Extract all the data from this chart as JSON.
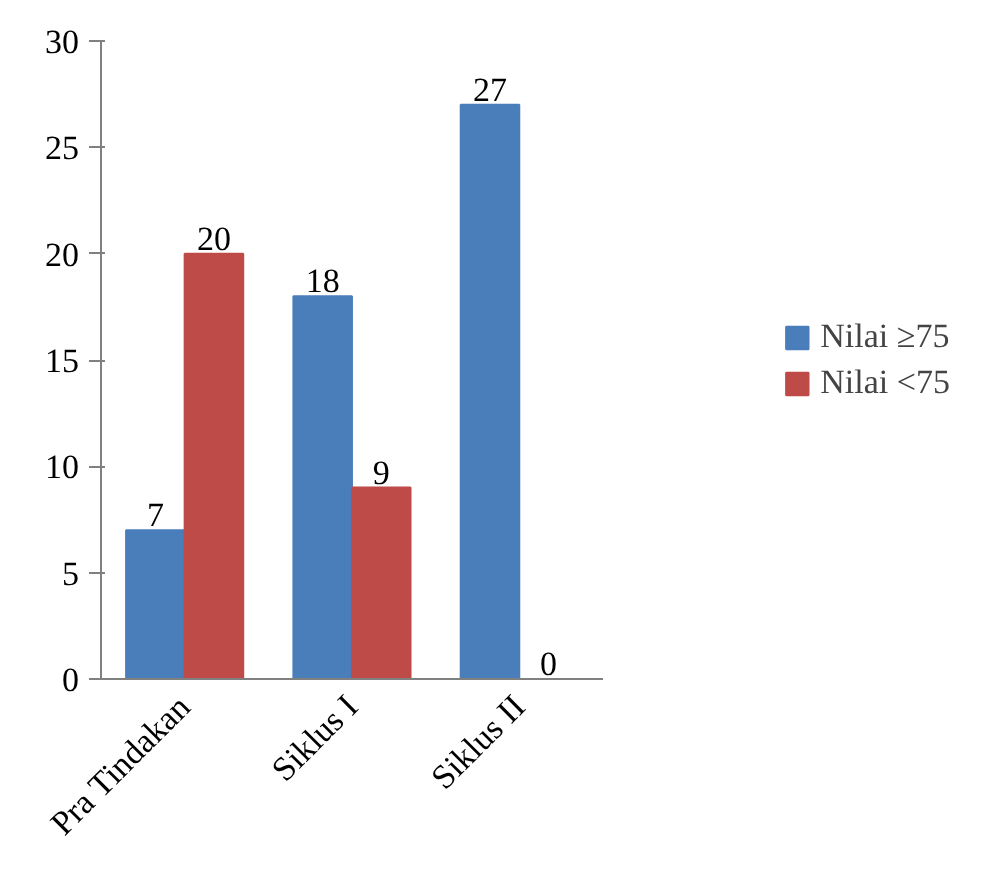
{
  "chart_data": {
    "type": "bar",
    "categories": [
      "Pra Tindakan",
      "Siklus I",
      "Siklus II"
    ],
    "series": [
      {
        "name": "Nilai ≥75",
        "color": "#4a7ebb",
        "values": [
          7,
          18,
          27
        ]
      },
      {
        "name": "Nilai <75",
        "color": "#be4b48",
        "values": [
          20,
          9,
          0
        ]
      }
    ],
    "ylim": [
      0,
      30
    ],
    "yticks": [
      0,
      5,
      10,
      15,
      20,
      25,
      30
    ],
    "grid": false,
    "legend": "right",
    "data_labels": true
  }
}
